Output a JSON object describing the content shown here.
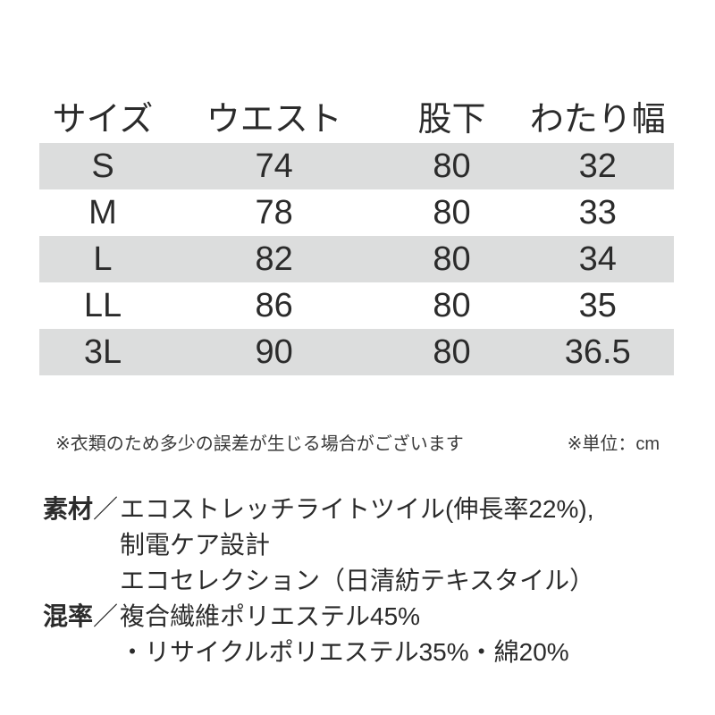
{
  "colors": {
    "stripe": "#dcdddd",
    "text": "#2b2b2b",
    "background": "#ffffff"
  },
  "table": {
    "headers": [
      "サイズ",
      "ウエスト",
      "股下",
      "わたり幅"
    ],
    "rows": [
      [
        "S",
        "74",
        "80",
        "32"
      ],
      [
        "M",
        "78",
        "80",
        "33"
      ],
      [
        "L",
        "82",
        "80",
        "34"
      ],
      [
        "LL",
        "86",
        "80",
        "35"
      ],
      [
        "3L",
        "90",
        "80",
        "36.5"
      ]
    ]
  },
  "notes": {
    "disclaimer": "※衣類のため多少の誤差が生じる場合がございます",
    "unit": "※単位：cm"
  },
  "specs": [
    {
      "label": "素材",
      "separator": "／",
      "lines": [
        "エコストレッチライトツイル(伸長率22%),",
        "制電ケア設計",
        "エコセレクション（日清紡テキスタイル）"
      ]
    },
    {
      "label": "混率",
      "separator": "／",
      "lines": [
        "複合繊維ポリエステル45%",
        "・リサイクルポリエステル35%・綿20%"
      ]
    }
  ]
}
